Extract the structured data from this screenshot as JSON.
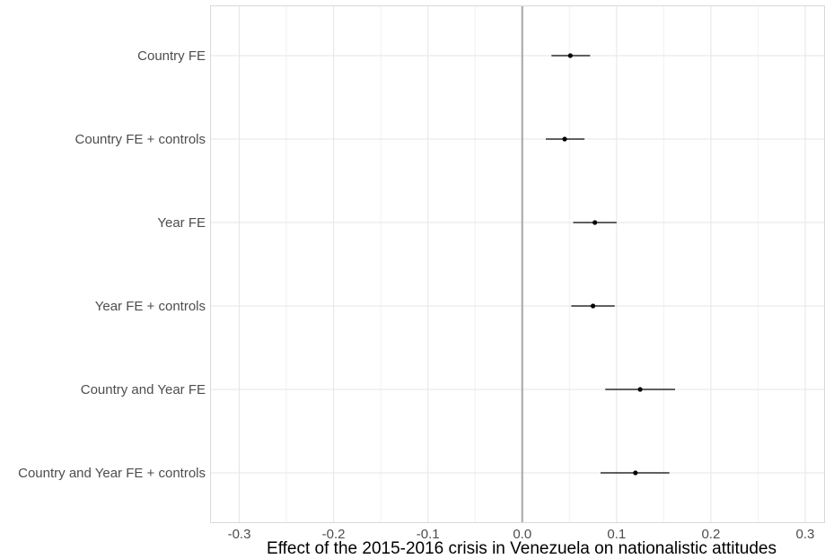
{
  "chart_data": {
    "type": "scatter",
    "subtype": "coefficient-plot-with-confidence-intervals",
    "title": "",
    "xlabel": "Effect of the 2015-2016 crisis in Venezuela on nationalistic attitudes",
    "ylabel": "",
    "xlim": [
      -0.33,
      0.32
    ],
    "x_ticks": [
      -0.3,
      -0.2,
      -0.1,
      0.0,
      0.1,
      0.2,
      0.3
    ],
    "x_tick_labels": [
      "-0.3",
      "-0.2",
      "-0.1",
      "0.0",
      "0.1",
      "0.2",
      "0.3"
    ],
    "reference_line_x": 0.0,
    "grid": true,
    "legend": "none",
    "models": [
      {
        "label": "Country FE",
        "estimate": 0.051,
        "ci_low": 0.031,
        "ci_high": 0.072
      },
      {
        "label": "Country FE + controls",
        "estimate": 0.045,
        "ci_low": 0.025,
        "ci_high": 0.066
      },
      {
        "label": "Year FE",
        "estimate": 0.077,
        "ci_low": 0.054,
        "ci_high": 0.1
      },
      {
        "label": "Year FE + controls",
        "estimate": 0.075,
        "ci_low": 0.052,
        "ci_high": 0.098
      },
      {
        "label": "Country and Year FE",
        "estimate": 0.125,
        "ci_low": 0.088,
        "ci_high": 0.162
      },
      {
        "label": "Country and Year FE + controls",
        "estimate": 0.12,
        "ci_low": 0.083,
        "ci_high": 0.156
      }
    ],
    "colors": {
      "point": "#000000",
      "ci": "#000000",
      "reference_line": "#a6a6a6",
      "grid": "#e6e6e6"
    }
  }
}
